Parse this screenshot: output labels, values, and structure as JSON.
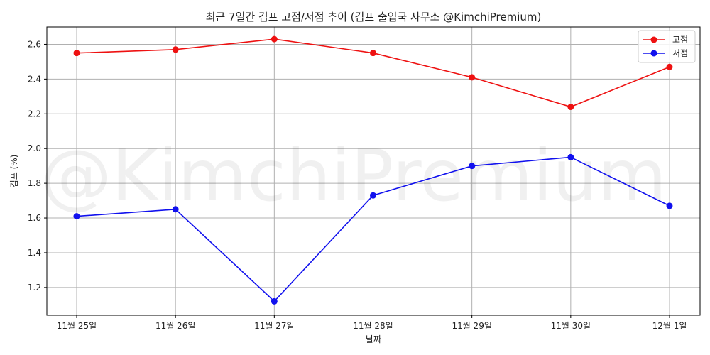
{
  "chart_data": {
    "type": "line",
    "title": "최근 7일간 김프 고점/저점 추이 (김프 출입국 사무소 @KimchiPremium)",
    "xlabel": "날짜",
    "ylabel": "김프 (%)",
    "categories": [
      "11월 25일",
      "11월 26일",
      "11월 27일",
      "11월 28일",
      "11월 29일",
      "11월 30일",
      "12월 1일"
    ],
    "series": [
      {
        "name": "고점",
        "color": "#ee1111",
        "values": [
          2.55,
          2.57,
          2.63,
          2.55,
          2.41,
          2.24,
          2.47
        ]
      },
      {
        "name": "저점",
        "color": "#1111ee",
        "values": [
          1.61,
          1.65,
          1.12,
          1.73,
          1.9,
          1.95,
          1.67
        ]
      }
    ],
    "ylim": [
      1.04,
      2.7
    ],
    "yticks": [
      "1.2",
      "1.4",
      "1.6",
      "1.8",
      "2.0",
      "2.2",
      "2.4",
      "2.6"
    ],
    "grid": true,
    "legend_position": "top-right",
    "watermark": "@KimchiPremium"
  }
}
